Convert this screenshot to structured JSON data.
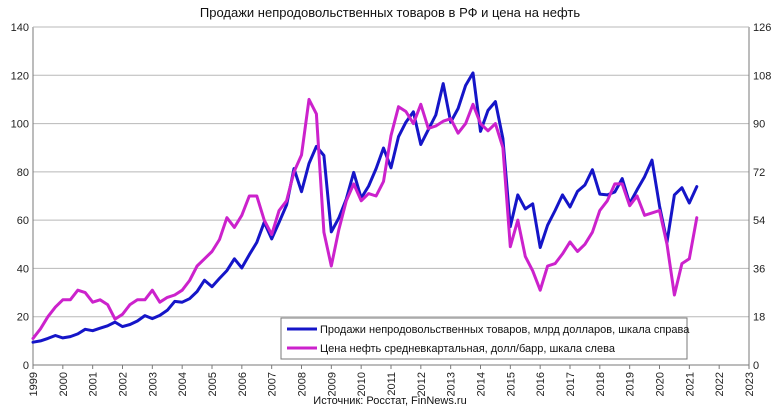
{
  "chart_data": {
    "type": "line",
    "title": "Продажи непродовольственных товаров в РФ и цена на нефть",
    "source": "Источник: Росстат, FinNews.ru",
    "x_ticks": [
      "1999",
      "2000",
      "2001",
      "2002",
      "2003",
      "2004",
      "2005",
      "2006",
      "2007",
      "2008",
      "2009",
      "2010",
      "2011",
      "2012",
      "2013",
      "2014",
      "2015",
      "2016",
      "2017",
      "2018",
      "2019",
      "2020",
      "2021",
      "2022",
      "2023"
    ],
    "xlim": [
      1999,
      2023
    ],
    "y_left": {
      "ticks": [
        "0",
        "20",
        "40",
        "60",
        "80",
        "100",
        "120",
        "140"
      ],
      "lim": [
        0,
        140
      ]
    },
    "y_right": {
      "ticks": [
        "0",
        "18",
        "36",
        "54",
        "72",
        "90",
        "108",
        "126"
      ],
      "lim": [
        0,
        126
      ]
    },
    "grid": true,
    "legend_position": "bottom-right",
    "colors": {
      "sales": "#1515c8",
      "oil": "#cc22cc",
      "grid": "#b8b8b8",
      "axis": "#7a7a7a"
    },
    "series": [
      {
        "name": "Продажи непродовольственных товаров, млрд долларов, шкала справа",
        "axis": "right",
        "color": "#1515c8",
        "x": [
          1999.0,
          1999.25,
          1999.5,
          1999.75,
          2000.0,
          2000.25,
          2000.5,
          2000.75,
          2001.0,
          2001.25,
          2001.5,
          2001.75,
          2002.0,
          2002.25,
          2002.5,
          2002.75,
          2003.0,
          2003.25,
          2003.5,
          2003.75,
          2004.0,
          2004.25,
          2004.5,
          2004.75,
          2005.0,
          2005.25,
          2005.5,
          2005.75,
          2006.0,
          2006.25,
          2006.5,
          2006.75,
          2007.0,
          2007.25,
          2007.5,
          2007.75,
          2008.0,
          2008.25,
          2008.5,
          2008.75,
          2009.0,
          2009.25,
          2009.5,
          2009.75,
          2010.0,
          2010.25,
          2010.5,
          2010.75,
          2011.0,
          2011.25,
          2011.5,
          2011.75,
          2012.0,
          2012.25,
          2012.5,
          2012.75,
          2013.0,
          2013.25,
          2013.5,
          2013.75,
          2014.0,
          2014.25,
          2014.5,
          2014.75,
          2015.0,
          2015.25,
          2015.5,
          2015.75,
          2016.0,
          2016.25,
          2016.5,
          2016.75,
          2017.0,
          2017.25,
          2017.5,
          2017.75,
          2018.0,
          2018.25,
          2018.5,
          2018.75,
          2019.0,
          2019.25,
          2019.5,
          2019.75,
          2020.0,
          2020.25,
          2020.5,
          2020.75,
          2021.0,
          2021.25
        ],
        "values": [
          8.5,
          9,
          9.9,
          11,
          10.1,
          10.6,
          11.6,
          13.3,
          12.8,
          13.7,
          14.6,
          16,
          14.3,
          15.1,
          16.4,
          18.4,
          17.3,
          18.5,
          20.4,
          23.7,
          23.4,
          24.7,
          27.4,
          31.6,
          29.2,
          32.3,
          35.2,
          39.6,
          36.2,
          41.1,
          45.7,
          53.2,
          47,
          53.2,
          59.7,
          73.2,
          64.6,
          75.1,
          81.5,
          78.1,
          49.6,
          54.8,
          61.9,
          71.8,
          62.2,
          66.7,
          73.2,
          80.9,
          73.5,
          85.1,
          90.5,
          94.4,
          82.2,
          87.7,
          93.2,
          104.9,
          90.5,
          95.6,
          104.2,
          108.9,
          87.1,
          94.9,
          98.2,
          84.4,
          51.6,
          63.4,
          58.2,
          60.1,
          43.8,
          52.1,
          57.6,
          63.4,
          58.9,
          64.7,
          67.1,
          72.8,
          63.7,
          63.4,
          64.5,
          69.5,
          60.2,
          65.3,
          70.2,
          76.4,
          59.3,
          45.8,
          63.4,
          66.1,
          60.4,
          66.5
        ]
      },
      {
        "name": "Цена нефть средневкартальная, долл/барр, шкала слева",
        "axis": "left",
        "color": "#cc22cc",
        "x": [
          1999.0,
          1999.25,
          1999.5,
          1999.75,
          2000.0,
          2000.25,
          2000.5,
          2000.75,
          2001.0,
          2001.25,
          2001.5,
          2001.75,
          2002.0,
          2002.25,
          2002.5,
          2002.75,
          2003.0,
          2003.25,
          2003.5,
          2003.75,
          2004.0,
          2004.25,
          2004.5,
          2004.75,
          2005.0,
          2005.25,
          2005.5,
          2005.75,
          2006.0,
          2006.25,
          2006.5,
          2006.75,
          2007.0,
          2007.25,
          2007.5,
          2007.75,
          2008.0,
          2008.25,
          2008.5,
          2008.75,
          2009.0,
          2009.25,
          2009.5,
          2009.75,
          2010.0,
          2010.25,
          2010.5,
          2010.75,
          2011.0,
          2011.25,
          2011.5,
          2011.75,
          2012.0,
          2012.25,
          2012.5,
          2012.75,
          2013.0,
          2013.25,
          2013.5,
          2013.75,
          2014.0,
          2014.25,
          2014.5,
          2014.75,
          2015.0,
          2015.25,
          2015.5,
          2015.75,
          2016.0,
          2016.25,
          2016.5,
          2016.75,
          2017.0,
          2017.25,
          2017.5,
          2017.75,
          2018.0,
          2018.25,
          2018.5,
          2018.75,
          2019.0,
          2019.25,
          2019.5,
          2019.75,
          2020.0,
          2020.25,
          2020.5,
          2020.75,
          2021.0,
          2021.25
        ],
        "values": [
          11,
          15,
          20,
          24,
          27,
          27,
          31,
          30,
          26,
          27,
          25,
          19,
          21,
          25,
          27,
          27,
          31,
          26,
          28,
          29,
          31,
          35,
          41,
          44,
          47,
          52,
          61,
          57,
          62,
          70,
          70,
          60,
          54,
          64,
          68,
          80,
          87,
          110,
          104,
          55,
          41,
          56,
          68,
          75,
          68,
          71,
          70,
          76,
          95,
          107,
          105,
          100,
          108,
          98,
          99,
          101,
          102,
          96,
          100,
          108,
          100,
          97,
          100,
          90,
          49,
          60,
          45,
          39,
          31,
          41,
          42,
          46,
          51,
          47,
          50,
          55,
          64,
          68,
          75,
          75,
          66,
          70,
          62,
          63,
          64,
          50,
          29,
          42,
          44,
          61
        ]
      }
    ]
  }
}
